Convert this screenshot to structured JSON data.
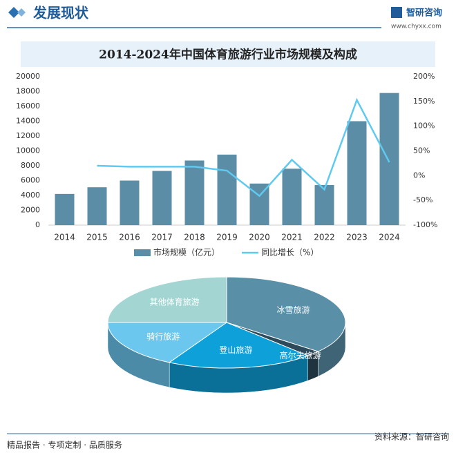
{
  "header": {
    "title": "发展现状",
    "logo": "智研咨询",
    "site": "www.chyxx.com"
  },
  "footer": {
    "left": "精品报告 · 专项定制 · 品质服务",
    "right": "资料来源：智研咨询"
  },
  "chart_data": [
    {
      "type": "bar",
      "title": "2014-2024年中国体育旅游行业市场规模及构成",
      "categories": [
        "2014",
        "2015",
        "2016",
        "2017",
        "2018",
        "2019",
        "2020",
        "2021",
        "2022",
        "2023",
        "2024"
      ],
      "series": [
        {
          "name": "市场规模（亿元）",
          "type": "bar",
          "color": "#5b8ea6",
          "values": [
            4200,
            5100,
            6000,
            7300,
            8700,
            9500,
            5600,
            7600,
            5400,
            14000,
            17800
          ]
        },
        {
          "name": "同比增长（%）",
          "type": "line",
          "axis": "y2",
          "color": "#5fc9ef",
          "values": [
            null,
            20,
            18,
            18,
            18,
            10,
            -41,
            32,
            -28,
            153,
            27
          ]
        }
      ],
      "ylim": [
        0,
        20000
      ],
      "yticks": [
        0,
        2000,
        4000,
        6000,
        8000,
        10000,
        12000,
        14000,
        16000,
        18000,
        20000
      ],
      "y2lim": [
        -100,
        200
      ],
      "y2ticks": [
        {
          "value": -100,
          "label": "-100%"
        },
        {
          "value": -50,
          "label": "-50%"
        },
        {
          "value": 0,
          "label": "0%"
        },
        {
          "value": 50,
          "label": "50%"
        },
        {
          "value": 100,
          "label": "100%"
        },
        {
          "value": 150,
          "label": "150%"
        },
        {
          "value": 200,
          "label": "200%"
        }
      ]
    },
    {
      "type": "pie",
      "categories": [
        "冰雪旅游",
        "高尔夫旅游",
        "登山旅游",
        "骑行旅游",
        "其他体育旅游"
      ],
      "values": [
        36,
        2,
        20,
        17,
        25
      ],
      "colors": [
        "#5a8fa8",
        "#2c4a5a",
        "#0ea0d8",
        "#6cc7ee",
        "#a3d5d3"
      ]
    }
  ]
}
